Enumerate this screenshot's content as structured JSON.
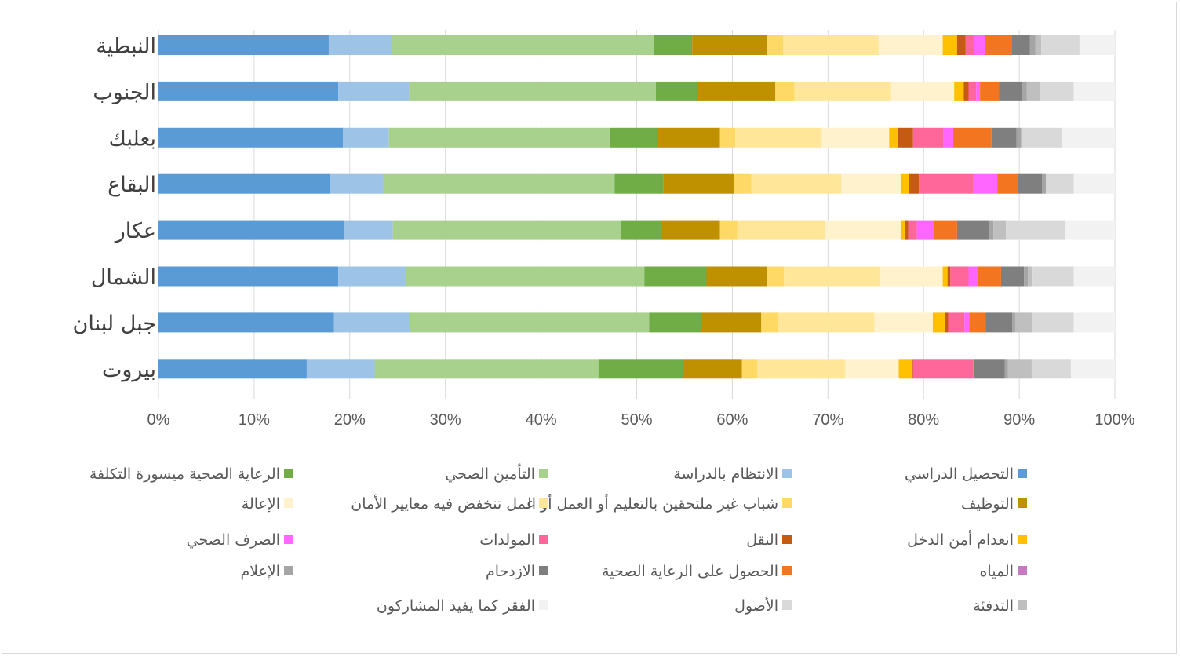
{
  "chart_data": {
    "type": "bar",
    "orientation": "horizontal",
    "stacked": "percent",
    "title": "",
    "xlabel": "",
    "ylabel": "",
    "xlim": [
      0,
      100
    ],
    "x_ticks": [
      "0%",
      "10%",
      "20%",
      "30%",
      "40%",
      "50%",
      "60%",
      "70%",
      "80%",
      "90%",
      "100%"
    ],
    "grid": "vertical",
    "legend_position": "bottom",
    "categories": [
      "النبطية",
      "الجنوب",
      "بعلبك",
      "البقاع",
      "عكار",
      "الشمال",
      "جبل لبنان",
      "بيروت"
    ],
    "series": [
      {
        "name": "التحصيل الدراسي",
        "color": "#5b9bd5",
        "values": [
          17.8,
          18.8,
          19.3,
          17.9,
          19.4,
          18.8,
          18.3,
          15.5
        ]
      },
      {
        "name": "الانتظام بالدراسة",
        "color": "#9dc3e6",
        "values": [
          6.6,
          7.4,
          4.8,
          5.6,
          5.1,
          7.0,
          7.9,
          7.1
        ]
      },
      {
        "name": "التأمين الصحي",
        "color": "#a9d18e",
        "values": [
          27.4,
          25.8,
          23.1,
          24.2,
          23.9,
          25.0,
          25.0,
          23.4
        ]
      },
      {
        "name": "الرعاية الصحية ميسورة التكلفة",
        "color": "#70ad47",
        "values": [
          4.0,
          4.3,
          4.9,
          5.1,
          4.1,
          6.5,
          5.4,
          8.8
        ]
      },
      {
        "name": "التوظيف",
        "color": "#bf9000",
        "values": [
          7.8,
          8.2,
          6.6,
          7.4,
          6.2,
          6.3,
          6.3,
          6.2
        ]
      },
      {
        "name": "شباب غير ملتحقين بالتعليم أو العمل أو التدريب",
        "color": "#ffd966",
        "values": [
          1.7,
          2.0,
          1.6,
          1.8,
          1.8,
          1.8,
          1.8,
          1.6
        ]
      },
      {
        "name": "عمل تنخفض فيه معايير الأمان",
        "color": "#ffe699",
        "values": [
          10.0,
          10.1,
          9.0,
          9.4,
          9.2,
          10.0,
          10.0,
          9.2
        ]
      },
      {
        "name": "الإعالة",
        "color": "#fff2cc",
        "values": [
          6.7,
          6.6,
          7.1,
          6.2,
          7.9,
          6.6,
          6.1,
          5.6
        ]
      },
      {
        "name": "انعدام أمن الدخل",
        "color": "#ffc000",
        "values": [
          1.5,
          1.0,
          0.9,
          0.9,
          0.5,
          0.5,
          1.3,
          1.4
        ]
      },
      {
        "name": "النقل",
        "color": "#c55a11",
        "values": [
          0.9,
          0.5,
          1.6,
          1.0,
          0.3,
          0.3,
          0.3,
          0.1
        ]
      },
      {
        "name": "المولدات",
        "color": "#ff6699",
        "values": [
          0.9,
          0.8,
          3.2,
          5.7,
          0.9,
          1.9,
          1.7,
          6.3
        ]
      },
      {
        "name": "الصرف الصحي",
        "color": "#ff66ff",
        "values": [
          1.1,
          0.4,
          1.0,
          2.5,
          1.8,
          1.0,
          0.5,
          0.1
        ]
      },
      {
        "name": "المياه",
        "color": "#c878c0",
        "values": [
          0.0,
          0.0,
          0.0,
          0.0,
          0.0,
          0.0,
          0.0,
          0.0
        ]
      },
      {
        "name": "الحصول على الرعاية الصحية",
        "color": "#f4751f",
        "values": [
          2.8,
          2.0,
          4.0,
          2.2,
          2.4,
          2.4,
          1.7,
          0.0
        ]
      },
      {
        "name": "الازدحام",
        "color": "#7f7f7f",
        "values": [
          1.9,
          2.4,
          2.6,
          2.5,
          3.4,
          2.4,
          2.8,
          3.2
        ]
      },
      {
        "name": "الإعلام",
        "color": "#a5a5a5",
        "values": [
          0.6,
          0.5,
          0.5,
          0.4,
          0.4,
          0.4,
          0.3,
          0.3
        ]
      },
      {
        "name": "التدفئة",
        "color": "#bfbfbf",
        "values": [
          0.6,
          1.4,
          0.0,
          0.0,
          1.3,
          0.5,
          1.8,
          2.5
        ]
      },
      {
        "name": "الأصول",
        "color": "#d9d9d9",
        "values": [
          4.0,
          3.5,
          4.3,
          2.9,
          6.2,
          4.3,
          4.3,
          4.1
        ]
      },
      {
        "name": "الفقر كما يفيد المشاركون",
        "color": "#f2f2f2",
        "values": [
          3.7,
          4.3,
          5.5,
          4.3,
          5.2,
          4.3,
          4.3,
          4.6
        ]
      }
    ]
  }
}
